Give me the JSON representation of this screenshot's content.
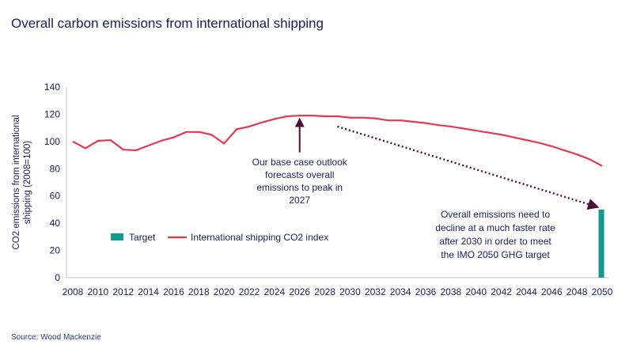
{
  "title": "Overall carbon emissions from international shipping",
  "source": "Source: Wood Mackenzie",
  "colors": {
    "line": "#e8384f",
    "target": "#13998f",
    "text": "#1a1d5c",
    "arrow": "#4a1138"
  },
  "chart_data": {
    "type": "line",
    "title": "Overall carbon emissions from international shipping",
    "ylabel": "CO2 emissions from international shipping (2008=100)",
    "ylabel_lines": [
      "CO2 emissions from international",
      "shipping (2008=100)"
    ],
    "ylim": [
      0,
      140
    ],
    "yticks": [
      0,
      20,
      40,
      60,
      80,
      100,
      120,
      140
    ],
    "xlim": [
      2008,
      2050
    ],
    "xticks": [
      2008,
      2010,
      2012,
      2014,
      2016,
      2018,
      2020,
      2022,
      2024,
      2026,
      2028,
      2030,
      2032,
      2034,
      2036,
      2038,
      2040,
      2042,
      2044,
      2046,
      2048,
      2050
    ],
    "legend_position": "lower-left",
    "series": [
      {
        "name": "International shipping CO2 index",
        "type": "line",
        "x": [
          2008,
          2009,
          2010,
          2011,
          2012,
          2013,
          2014,
          2015,
          2016,
          2017,
          2018,
          2019,
          2020,
          2021,
          2022,
          2023,
          2024,
          2025,
          2026,
          2027,
          2028,
          2029,
          2030,
          2031,
          2032,
          2033,
          2034,
          2035,
          2036,
          2037,
          2038,
          2039,
          2040,
          2041,
          2042,
          2043,
          2044,
          2045,
          2046,
          2047,
          2048,
          2049,
          2050
        ],
        "y": [
          100,
          95,
          100.5,
          101,
          94,
          93.5,
          97,
          100.5,
          103,
          107,
          107,
          105,
          98.5,
          109,
          111,
          114,
          116.5,
          118.5,
          119,
          119,
          118.5,
          118.5,
          117.5,
          117.5,
          117,
          115.5,
          115.5,
          114.5,
          113.5,
          112,
          111,
          109.5,
          108,
          106.5,
          105,
          103,
          101,
          99,
          96.5,
          93.5,
          90.5,
          87,
          82
        ]
      },
      {
        "name": "Target",
        "type": "bar",
        "x": [
          2050
        ],
        "y": [
          50
        ]
      }
    ],
    "annotations": [
      {
        "id": "peak",
        "lines": [
          "Our base case outlook",
          "forecasts overall",
          "emissions to peak in",
          "2027"
        ],
        "arrow_x": 2026,
        "arrow_from_y": 92,
        "arrow_to_y": 118.5
      },
      {
        "id": "decline",
        "lines": [
          "Overall emissions need to",
          "decline at a much faster rate",
          "after 2030 in order to meet",
          "the IMO 2050 GHG target"
        ],
        "arrow_from": [
          2029,
          111
        ],
        "arrow_to": [
          2049.6,
          52
        ]
      }
    ]
  }
}
